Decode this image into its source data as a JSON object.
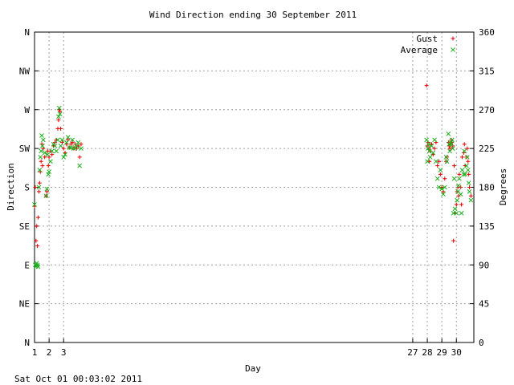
{
  "footer": {
    "timestamp": "Sat Oct 01 00:03:02 2011"
  },
  "colors": {
    "gust": "#e00000",
    "average": "#20b020",
    "grid": "#a0a0a0"
  },
  "chart_data": {
    "type": "scatter",
    "title": "Wind Direction ending 30 September 2011",
    "xlabel": "Day",
    "ylabel": "Direction",
    "y2label": "Degrees",
    "xlim": [
      1,
      31.2
    ],
    "ylim": [
      0,
      360
    ],
    "grid": true,
    "legend_position": "top-right",
    "x_ticks": [
      {
        "value": 1,
        "label": "1"
      },
      {
        "value": 2,
        "label": "2"
      },
      {
        "value": 3,
        "label": "3"
      },
      {
        "value": 27,
        "label": "27"
      },
      {
        "value": 28,
        "label": "28"
      },
      {
        "value": 29,
        "label": "29"
      },
      {
        "value": 30,
        "label": "30"
      }
    ],
    "y_ticks_left": [
      {
        "value": 0,
        "label": "N"
      },
      {
        "value": 45,
        "label": "NE"
      },
      {
        "value": 90,
        "label": "E"
      },
      {
        "value": 135,
        "label": "SE"
      },
      {
        "value": 180,
        "label": "S"
      },
      {
        "value": 225,
        "label": "SW"
      },
      {
        "value": 270,
        "label": "W"
      },
      {
        "value": 315,
        "label": "NW"
      },
      {
        "value": 360,
        "label": "N"
      }
    ],
    "y_ticks_right": [
      {
        "value": 0,
        "label": "0"
      },
      {
        "value": 45,
        "label": "45"
      },
      {
        "value": 90,
        "label": "90"
      },
      {
        "value": 135,
        "label": "135"
      },
      {
        "value": 180,
        "label": "180"
      },
      {
        "value": 225,
        "label": "225"
      },
      {
        "value": 270,
        "label": "270"
      },
      {
        "value": 315,
        "label": "315"
      },
      {
        "value": 360,
        "label": "360"
      }
    ],
    "series": [
      {
        "name": "Gust",
        "marker": "plus",
        "points": [
          [
            1.0,
            158
          ],
          [
            1.05,
            180
          ],
          [
            1.1,
            118
          ],
          [
            1.15,
            135
          ],
          [
            1.2,
            112
          ],
          [
            1.25,
            145
          ],
          [
            1.3,
            175
          ],
          [
            1.35,
            185
          ],
          [
            1.4,
            198
          ],
          [
            1.45,
            210
          ],
          [
            1.5,
            230
          ],
          [
            1.55,
            205
          ],
          [
            1.6,
            225
          ],
          [
            1.7,
            215
          ],
          [
            1.8,
            170
          ],
          [
            1.85,
            175
          ],
          [
            1.9,
            222
          ],
          [
            1.95,
            205
          ],
          [
            2.0,
            215
          ],
          [
            2.1,
            222
          ],
          [
            2.2,
            218
          ],
          [
            2.3,
            228
          ],
          [
            2.4,
            232
          ],
          [
            2.5,
            235
          ],
          [
            2.6,
            248
          ],
          [
            2.65,
            258
          ],
          [
            2.7,
            270
          ],
          [
            2.75,
            268
          ],
          [
            2.8,
            248
          ],
          [
            2.9,
            232
          ],
          [
            3.0,
            225
          ],
          [
            3.1,
            220
          ],
          [
            3.2,
            230
          ],
          [
            3.3,
            235
          ],
          [
            3.4,
            226
          ],
          [
            3.5,
            230
          ],
          [
            3.6,
            232
          ],
          [
            3.7,
            225
          ],
          [
            3.8,
            230
          ],
          [
            3.9,
            225
          ],
          [
            4.0,
            228
          ],
          [
            4.1,
            215
          ],
          [
            4.2,
            230
          ],
          [
            27.95,
            298
          ],
          [
            28.0,
            228
          ],
          [
            28.05,
            232
          ],
          [
            28.1,
            225
          ],
          [
            28.15,
            210
          ],
          [
            28.2,
            222
          ],
          [
            28.3,
            230
          ],
          [
            28.4,
            218
          ],
          [
            28.5,
            225
          ],
          [
            28.6,
            232
          ],
          [
            28.7,
            205
          ],
          [
            28.8,
            210
          ],
          [
            28.9,
            195
          ],
          [
            29.0,
            180
          ],
          [
            29.1,
            175
          ],
          [
            29.2,
            190
          ],
          [
            29.3,
            210
          ],
          [
            29.35,
            215
          ],
          [
            29.45,
            232
          ],
          [
            29.5,
            228
          ],
          [
            29.55,
            225
          ],
          [
            29.6,
            230
          ],
          [
            29.65,
            235
          ],
          [
            29.7,
            232
          ],
          [
            29.75,
            228
          ],
          [
            29.8,
            118
          ],
          [
            29.85,
            205
          ],
          [
            29.9,
            150
          ],
          [
            30.0,
            160
          ],
          [
            30.05,
            175
          ],
          [
            30.1,
            180
          ],
          [
            30.15,
            170
          ],
          [
            30.2,
            195
          ],
          [
            30.3,
            180
          ],
          [
            30.35,
            160
          ],
          [
            30.4,
            215
          ],
          [
            30.5,
            220
          ],
          [
            30.55,
            230
          ],
          [
            30.6,
            205
          ],
          [
            30.7,
            215
          ],
          [
            30.75,
            225
          ],
          [
            30.8,
            210
          ],
          [
            30.85,
            195
          ],
          [
            30.9,
            180
          ],
          [
            31.0,
            170
          ]
        ]
      },
      {
        "name": "Average",
        "marker": "cross",
        "points": [
          [
            1.0,
            160
          ],
          [
            1.05,
            90
          ],
          [
            1.1,
            88
          ],
          [
            1.15,
            92
          ],
          [
            1.2,
            90
          ],
          [
            1.25,
            88
          ],
          [
            1.3,
            180
          ],
          [
            1.35,
            200
          ],
          [
            1.4,
            215
          ],
          [
            1.45,
            222
          ],
          [
            1.5,
            240
          ],
          [
            1.55,
            228
          ],
          [
            1.6,
            235
          ],
          [
            1.7,
            220
          ],
          [
            1.8,
            170
          ],
          [
            1.85,
            178
          ],
          [
            1.9,
            218
          ],
          [
            1.95,
            195
          ],
          [
            2.0,
            198
          ],
          [
            2.1,
            210
          ],
          [
            2.2,
            222
          ],
          [
            2.3,
            230
          ],
          [
            2.4,
            228
          ],
          [
            2.5,
            222
          ],
          [
            2.6,
            235
          ],
          [
            2.65,
            262
          ],
          [
            2.7,
            272
          ],
          [
            2.75,
            265
          ],
          [
            2.8,
            228
          ],
          [
            2.9,
            235
          ],
          [
            3.0,
            215
          ],
          [
            3.1,
            218
          ],
          [
            3.2,
            232
          ],
          [
            3.3,
            238
          ],
          [
            3.4,
            226
          ],
          [
            3.5,
            226
          ],
          [
            3.6,
            235
          ],
          [
            3.7,
            225
          ],
          [
            3.8,
            226
          ],
          [
            3.9,
            228
          ],
          [
            4.0,
            232
          ],
          [
            4.1,
            205
          ],
          [
            4.2,
            225
          ],
          [
            27.95,
            235
          ],
          [
            28.0,
            210
          ],
          [
            28.05,
            225
          ],
          [
            28.1,
            230
          ],
          [
            28.15,
            222
          ],
          [
            28.2,
            215
          ],
          [
            28.3,
            228
          ],
          [
            28.4,
            220
          ],
          [
            28.5,
            235
          ],
          [
            28.6,
            210
          ],
          [
            28.7,
            190
          ],
          [
            28.8,
            180
          ],
          [
            28.9,
            200
          ],
          [
            29.0,
            178
          ],
          [
            29.1,
            172
          ],
          [
            29.2,
            180
          ],
          [
            29.3,
            215
          ],
          [
            29.35,
            210
          ],
          [
            29.45,
            242
          ],
          [
            29.5,
            230
          ],
          [
            29.55,
            222
          ],
          [
            29.6,
            232
          ],
          [
            29.65,
            230
          ],
          [
            29.7,
            235
          ],
          [
            29.75,
            225
          ],
          [
            29.8,
            150
          ],
          [
            29.85,
            190
          ],
          [
            29.9,
            155
          ],
          [
            30.0,
            150
          ],
          [
            30.05,
            165
          ],
          [
            30.1,
            175
          ],
          [
            30.15,
            182
          ],
          [
            30.2,
            190
          ],
          [
            30.3,
            172
          ],
          [
            30.35,
            150
          ],
          [
            30.4,
            200
          ],
          [
            30.5,
            195
          ],
          [
            30.55,
            222
          ],
          [
            30.6,
            195
          ],
          [
            30.7,
            205
          ],
          [
            30.75,
            215
          ],
          [
            30.8,
            200
          ],
          [
            30.85,
            185
          ],
          [
            30.9,
            175
          ],
          [
            31.0,
            165
          ]
        ]
      }
    ]
  }
}
